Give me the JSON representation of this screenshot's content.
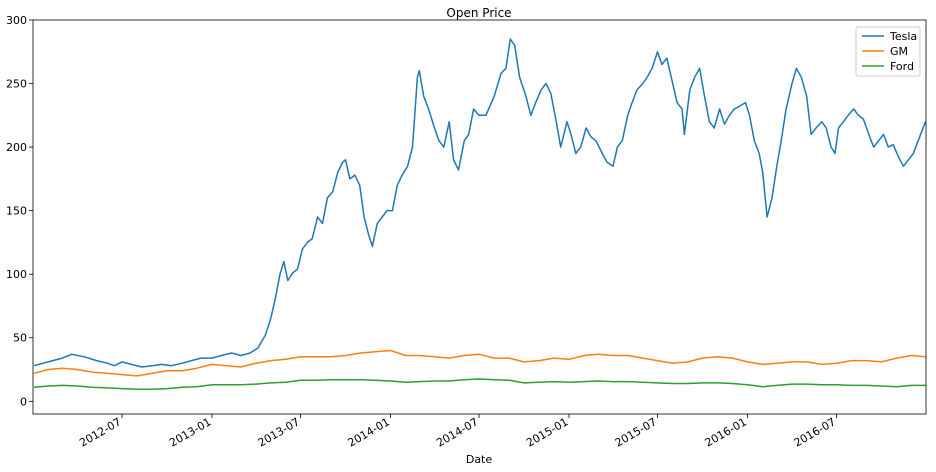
{
  "chart_data": {
    "type": "line",
    "title": "Open Price",
    "xlabel": "Date",
    "ylabel": "",
    "xlim": [
      "2012-01-01",
      "2016-12-31"
    ],
    "ylim": [
      -10,
      300
    ],
    "yticks": [
      0,
      50,
      100,
      150,
      200,
      250,
      300
    ],
    "xticks": [
      "2012-07",
      "2013-01",
      "2013-07",
      "2014-01",
      "2014-07",
      "2015-01",
      "2015-07",
      "2016-01",
      "2016-07"
    ],
    "grid": false,
    "legend_position": "top-right",
    "series": [
      {
        "name": "Tesla",
        "color": "#1f77b4",
        "points": [
          [
            "2012-01-03",
            28
          ],
          [
            "2012-02-01",
            31
          ],
          [
            "2012-03-01",
            34
          ],
          [
            "2012-03-20",
            37
          ],
          [
            "2012-04-15",
            35
          ],
          [
            "2012-05-10",
            32
          ],
          [
            "2012-06-01",
            30
          ],
          [
            "2012-06-15",
            28
          ],
          [
            "2012-07-01",
            31
          ],
          [
            "2012-07-20",
            29
          ],
          [
            "2012-08-10",
            27
          ],
          [
            "2012-09-01",
            28
          ],
          [
            "2012-09-20",
            29
          ],
          [
            "2012-10-10",
            28
          ],
          [
            "2012-11-01",
            30
          ],
          [
            "2012-11-20",
            32
          ],
          [
            "2012-12-10",
            34
          ],
          [
            "2013-01-01",
            34
          ],
          [
            "2013-01-20",
            36
          ],
          [
            "2013-02-10",
            38
          ],
          [
            "2013-03-01",
            36
          ],
          [
            "2013-03-20",
            38
          ],
          [
            "2013-04-05",
            42
          ],
          [
            "2013-04-20",
            52
          ],
          [
            "2013-05-01",
            65
          ],
          [
            "2013-05-10",
            80
          ],
          [
            "2013-05-20",
            100
          ],
          [
            "2013-05-28",
            110
          ],
          [
            "2013-06-05",
            95
          ],
          [
            "2013-06-15",
            101
          ],
          [
            "2013-06-25",
            104
          ],
          [
            "2013-07-05",
            120
          ],
          [
            "2013-07-15",
            125
          ],
          [
            "2013-07-25",
            128
          ],
          [
            "2013-08-05",
            145
          ],
          [
            "2013-08-15",
            140
          ],
          [
            "2013-08-25",
            160
          ],
          [
            "2013-09-05",
            165
          ],
          [
            "2013-09-15",
            180
          ],
          [
            "2013-09-25",
            188
          ],
          [
            "2013-10-01",
            190
          ],
          [
            "2013-10-10",
            175
          ],
          [
            "2013-10-20",
            178
          ],
          [
            "2013-10-30",
            170
          ],
          [
            "2013-11-08",
            145
          ],
          [
            "2013-11-18",
            130
          ],
          [
            "2013-11-25",
            122
          ],
          [
            "2013-12-05",
            140
          ],
          [
            "2013-12-15",
            145
          ],
          [
            "2013-12-25",
            150
          ],
          [
            "2014-01-05",
            150
          ],
          [
            "2014-01-15",
            170
          ],
          [
            "2014-01-25",
            178
          ],
          [
            "2014-02-05",
            185
          ],
          [
            "2014-02-15",
            200
          ],
          [
            "2014-02-25",
            255
          ],
          [
            "2014-03-01",
            260
          ],
          [
            "2014-03-10",
            240
          ],
          [
            "2014-03-20",
            230
          ],
          [
            "2014-04-01",
            215
          ],
          [
            "2014-04-10",
            205
          ],
          [
            "2014-04-20",
            200
          ],
          [
            "2014-05-01",
            220
          ],
          [
            "2014-05-10",
            190
          ],
          [
            "2014-05-20",
            182
          ],
          [
            "2014-06-01",
            205
          ],
          [
            "2014-06-10",
            210
          ],
          [
            "2014-06-20",
            230
          ],
          [
            "2014-07-01",
            225
          ],
          [
            "2014-07-15",
            225
          ],
          [
            "2014-08-01",
            240
          ],
          [
            "2014-08-15",
            258
          ],
          [
            "2014-08-25",
            262
          ],
          [
            "2014-09-03",
            285
          ],
          [
            "2014-09-12",
            280
          ],
          [
            "2014-09-22",
            255
          ],
          [
            "2014-10-05",
            240
          ],
          [
            "2014-10-15",
            225
          ],
          [
            "2014-10-25",
            235
          ],
          [
            "2014-11-05",
            245
          ],
          [
            "2014-11-15",
            250
          ],
          [
            "2014-11-25",
            242
          ],
          [
            "2014-12-05",
            222
          ],
          [
            "2014-12-15",
            200
          ],
          [
            "2014-12-28",
            220
          ],
          [
            "2015-01-05",
            210
          ],
          [
            "2015-01-15",
            195
          ],
          [
            "2015-01-25",
            200
          ],
          [
            "2015-02-05",
            215
          ],
          [
            "2015-02-15",
            208
          ],
          [
            "2015-02-25",
            205
          ],
          [
            "2015-03-10",
            195
          ],
          [
            "2015-03-20",
            188
          ],
          [
            "2015-04-01",
            185
          ],
          [
            "2015-04-10",
            200
          ],
          [
            "2015-04-20",
            205
          ],
          [
            "2015-05-01",
            225
          ],
          [
            "2015-05-10",
            235
          ],
          [
            "2015-05-20",
            245
          ],
          [
            "2015-06-01",
            250
          ],
          [
            "2015-06-10",
            255
          ],
          [
            "2015-06-20",
            262
          ],
          [
            "2015-07-01",
            275
          ],
          [
            "2015-07-10",
            265
          ],
          [
            "2015-07-20",
            270
          ],
          [
            "2015-08-01",
            250
          ],
          [
            "2015-08-10",
            235
          ],
          [
            "2015-08-20",
            230
          ],
          [
            "2015-08-25",
            210
          ],
          [
            "2015-09-05",
            245
          ],
          [
            "2015-09-15",
            255
          ],
          [
            "2015-09-25",
            262
          ],
          [
            "2015-10-05",
            240
          ],
          [
            "2015-10-15",
            220
          ],
          [
            "2015-10-25",
            215
          ],
          [
            "2015-11-05",
            230
          ],
          [
            "2015-11-15",
            218
          ],
          [
            "2015-11-25",
            225
          ],
          [
            "2015-12-05",
            230
          ],
          [
            "2015-12-15",
            232
          ],
          [
            "2015-12-28",
            235
          ],
          [
            "2016-01-05",
            225
          ],
          [
            "2016-01-15",
            205
          ],
          [
            "2016-01-25",
            195
          ],
          [
            "2016-02-01",
            180
          ],
          [
            "2016-02-10",
            145
          ],
          [
            "2016-02-20",
            160
          ],
          [
            "2016-03-01",
            185
          ],
          [
            "2016-03-10",
            205
          ],
          [
            "2016-03-20",
            230
          ],
          [
            "2016-04-01",
            250
          ],
          [
            "2016-04-10",
            262
          ],
          [
            "2016-04-20",
            255
          ],
          [
            "2016-05-01",
            240
          ],
          [
            "2016-05-10",
            210
          ],
          [
            "2016-05-20",
            215
          ],
          [
            "2016-06-01",
            220
          ],
          [
            "2016-06-10",
            215
          ],
          [
            "2016-06-20",
            200
          ],
          [
            "2016-06-28",
            195
          ],
          [
            "2016-07-05",
            215
          ],
          [
            "2016-07-15",
            220
          ],
          [
            "2016-07-25",
            225
          ],
          [
            "2016-08-05",
            230
          ],
          [
            "2016-08-15",
            225
          ],
          [
            "2016-08-25",
            222
          ],
          [
            "2016-09-05",
            210
          ],
          [
            "2016-09-15",
            200
          ],
          [
            "2016-09-25",
            205
          ],
          [
            "2016-10-05",
            210
          ],
          [
            "2016-10-15",
            200
          ],
          [
            "2016-10-25",
            202
          ],
          [
            "2016-11-05",
            192
          ],
          [
            "2016-11-15",
            185
          ],
          [
            "2016-11-25",
            190
          ],
          [
            "2016-12-05",
            195
          ],
          [
            "2016-12-15",
            205
          ],
          [
            "2016-12-30",
            220
          ]
        ]
      },
      {
        "name": "GM",
        "color": "#ff7f0e",
        "points": [
          [
            "2012-01-03",
            22
          ],
          [
            "2012-02-01",
            25
          ],
          [
            "2012-03-01",
            26
          ],
          [
            "2012-04-01",
            25
          ],
          [
            "2012-05-01",
            23
          ],
          [
            "2012-06-01",
            22
          ],
          [
            "2012-07-01",
            21
          ],
          [
            "2012-08-01",
            20
          ],
          [
            "2012-09-01",
            22
          ],
          [
            "2012-10-01",
            24
          ],
          [
            "2012-11-01",
            24
          ],
          [
            "2012-12-01",
            26
          ],
          [
            "2013-01-01",
            29
          ],
          [
            "2013-02-01",
            28
          ],
          [
            "2013-03-01",
            27
          ],
          [
            "2013-04-01",
            30
          ],
          [
            "2013-05-01",
            32
          ],
          [
            "2013-06-01",
            33
          ],
          [
            "2013-07-01",
            35
          ],
          [
            "2013-08-01",
            35
          ],
          [
            "2013-09-01",
            35
          ],
          [
            "2013-10-01",
            36
          ],
          [
            "2013-11-01",
            38
          ],
          [
            "2013-12-01",
            39
          ],
          [
            "2014-01-01",
            40
          ],
          [
            "2014-02-01",
            36
          ],
          [
            "2014-03-01",
            36
          ],
          [
            "2014-04-01",
            35
          ],
          [
            "2014-05-01",
            34
          ],
          [
            "2014-06-01",
            36
          ],
          [
            "2014-07-01",
            37
          ],
          [
            "2014-08-01",
            34
          ],
          [
            "2014-09-01",
            34
          ],
          [
            "2014-10-01",
            31
          ],
          [
            "2014-11-01",
            32
          ],
          [
            "2014-12-01",
            34
          ],
          [
            "2015-01-01",
            33
          ],
          [
            "2015-02-01",
            36
          ],
          [
            "2015-03-01",
            37
          ],
          [
            "2015-04-01",
            36
          ],
          [
            "2015-05-01",
            36
          ],
          [
            "2015-06-01",
            34
          ],
          [
            "2015-07-01",
            32
          ],
          [
            "2015-08-01",
            30
          ],
          [
            "2015-09-01",
            31
          ],
          [
            "2015-10-01",
            34
          ],
          [
            "2015-11-01",
            35
          ],
          [
            "2015-12-01",
            34
          ],
          [
            "2016-01-01",
            31
          ],
          [
            "2016-02-01",
            29
          ],
          [
            "2016-03-01",
            30
          ],
          [
            "2016-04-01",
            31
          ],
          [
            "2016-05-01",
            31
          ],
          [
            "2016-06-01",
            29
          ],
          [
            "2016-07-01",
            30
          ],
          [
            "2016-08-01",
            32
          ],
          [
            "2016-09-01",
            32
          ],
          [
            "2016-10-01",
            31
          ],
          [
            "2016-11-01",
            34
          ],
          [
            "2016-12-01",
            36
          ],
          [
            "2016-12-30",
            35
          ]
        ]
      },
      {
        "name": "Ford",
        "color": "#2ca02c",
        "points": [
          [
            "2012-01-03",
            11
          ],
          [
            "2012-02-01",
            12
          ],
          [
            "2012-03-01",
            12.5
          ],
          [
            "2012-04-01",
            12
          ],
          [
            "2012-05-01",
            11
          ],
          [
            "2012-06-01",
            10.5
          ],
          [
            "2012-07-01",
            10
          ],
          [
            "2012-08-01",
            9.5
          ],
          [
            "2012-09-01",
            9.5
          ],
          [
            "2012-10-01",
            10
          ],
          [
            "2012-11-01",
            11
          ],
          [
            "2012-12-01",
            11.5
          ],
          [
            "2013-01-01",
            13
          ],
          [
            "2013-02-01",
            13
          ],
          [
            "2013-03-01",
            13
          ],
          [
            "2013-04-01",
            13.5
          ],
          [
            "2013-05-01",
            14.5
          ],
          [
            "2013-06-01",
            15
          ],
          [
            "2013-07-01",
            16.5
          ],
          [
            "2013-08-01",
            16.5
          ],
          [
            "2013-09-01",
            17
          ],
          [
            "2013-10-01",
            17
          ],
          [
            "2013-11-01",
            17
          ],
          [
            "2013-12-01",
            16.5
          ],
          [
            "2014-01-01",
            16
          ],
          [
            "2014-02-01",
            15
          ],
          [
            "2014-03-01",
            15.5
          ],
          [
            "2014-04-01",
            16
          ],
          [
            "2014-05-01",
            16
          ],
          [
            "2014-06-01",
            17
          ],
          [
            "2014-07-01",
            17.5
          ],
          [
            "2014-08-01",
            17
          ],
          [
            "2014-09-01",
            16.5
          ],
          [
            "2014-10-01",
            14.5
          ],
          [
            "2014-11-01",
            15
          ],
          [
            "2014-12-01",
            15.5
          ],
          [
            "2015-01-01",
            15
          ],
          [
            "2015-02-01",
            15.5
          ],
          [
            "2015-03-01",
            16
          ],
          [
            "2015-04-01",
            15.5
          ],
          [
            "2015-05-01",
            15.5
          ],
          [
            "2015-06-01",
            15
          ],
          [
            "2015-07-01",
            14.5
          ],
          [
            "2015-08-01",
            14
          ],
          [
            "2015-09-01",
            14
          ],
          [
            "2015-10-01",
            14.5
          ],
          [
            "2015-11-01",
            14.5
          ],
          [
            "2015-12-01",
            14
          ],
          [
            "2016-01-01",
            13
          ],
          [
            "2016-02-01",
            11.5
          ],
          [
            "2016-03-01",
            12.5
          ],
          [
            "2016-04-01",
            13.5
          ],
          [
            "2016-05-01",
            13.5
          ],
          [
            "2016-06-01",
            13
          ],
          [
            "2016-07-01",
            13
          ],
          [
            "2016-08-01",
            12.5
          ],
          [
            "2016-09-01",
            12.5
          ],
          [
            "2016-10-01",
            12
          ],
          [
            "2016-11-01",
            11.5
          ],
          [
            "2016-12-01",
            12.5
          ],
          [
            "2016-12-30",
            12.5
          ]
        ]
      }
    ]
  }
}
